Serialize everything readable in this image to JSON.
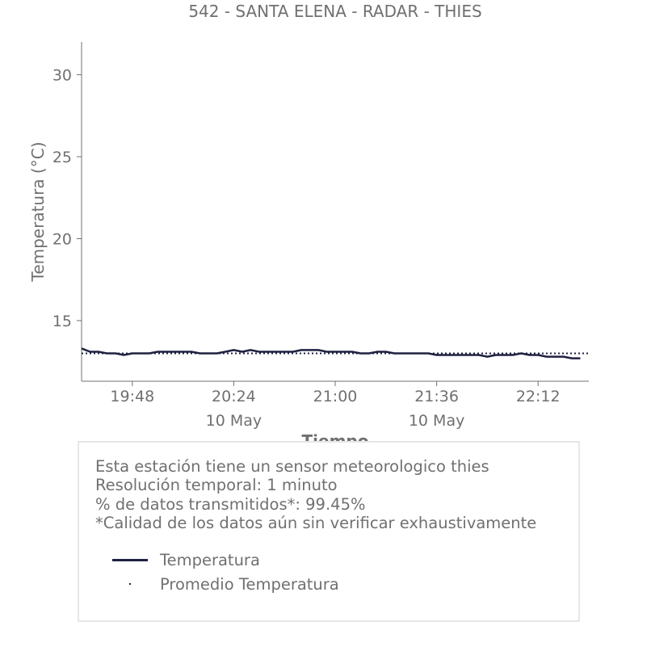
{
  "chart_data": {
    "type": "line",
    "title": "542 - SANTA ELENA - RADAR - THIES",
    "xlabel": "Tiempo",
    "ylabel": "Temperatura (°C)",
    "ylim": [
      11.3,
      32
    ],
    "xlim": [
      "19:30",
      "22:30"
    ],
    "y_ticks": [
      15,
      20,
      25,
      30
    ],
    "x_ticks": [
      {
        "value": "19:48",
        "label": "19:48",
        "sublabel": ""
      },
      {
        "value": "20:24",
        "label": "20:24",
        "sublabel": "10 May"
      },
      {
        "value": "21:00",
        "label": "21:00",
        "sublabel": ""
      },
      {
        "value": "21:36",
        "label": "21:36",
        "sublabel": "10 May"
      },
      {
        "value": "22:12",
        "label": "22:12",
        "sublabel": ""
      }
    ],
    "grid": false,
    "series": [
      {
        "name": "Temperatura",
        "color": "#1f2140",
        "style": "solid",
        "x": [
          "19:30",
          "19:33",
          "19:36",
          "19:39",
          "19:42",
          "19:45",
          "19:48",
          "19:51",
          "19:54",
          "19:57",
          "20:00",
          "20:03",
          "20:06",
          "20:09",
          "20:12",
          "20:15",
          "20:18",
          "20:21",
          "20:24",
          "20:27",
          "20:30",
          "20:33",
          "20:36",
          "20:39",
          "20:42",
          "20:45",
          "20:48",
          "20:51",
          "20:54",
          "20:57",
          "21:00",
          "21:03",
          "21:06",
          "21:09",
          "21:12",
          "21:15",
          "21:18",
          "21:21",
          "21:24",
          "21:27",
          "21:30",
          "21:33",
          "21:36",
          "21:39",
          "21:42",
          "21:45",
          "21:48",
          "21:51",
          "21:54",
          "21:57",
          "22:00",
          "22:03",
          "22:06",
          "22:09",
          "22:12",
          "22:15",
          "22:18",
          "22:21",
          "22:24",
          "22:27"
        ],
        "values": [
          13.3,
          13.1,
          13.1,
          13.0,
          13.0,
          12.9,
          13.0,
          13.0,
          13.0,
          13.1,
          13.1,
          13.1,
          13.1,
          13.1,
          13.0,
          13.0,
          13.0,
          13.1,
          13.2,
          13.1,
          13.2,
          13.1,
          13.1,
          13.1,
          13.1,
          13.1,
          13.2,
          13.2,
          13.2,
          13.1,
          13.1,
          13.1,
          13.1,
          13.0,
          13.0,
          13.1,
          13.1,
          13.0,
          13.0,
          13.0,
          13.0,
          13.0,
          12.9,
          12.9,
          12.9,
          12.9,
          12.9,
          12.9,
          12.8,
          12.9,
          12.9,
          12.9,
          13.0,
          12.9,
          12.9,
          12.8,
          12.8,
          12.8,
          12.7,
          12.7
        ]
      },
      {
        "name": "Promedio Temperatura",
        "color": "#1f2140",
        "style": "dotted",
        "constant": 13.0
      }
    ]
  },
  "info": {
    "lines": [
      "Esta estación tiene un sensor meteorologico thies",
      "Resolución temporal: 1 minuto",
      "% de datos transmitidos*: 99.45%",
      "*Calidad de los datos aún sin verificar exhaustivamente"
    ]
  },
  "legend": {
    "items": [
      {
        "label": "Temperatura",
        "swatch": "line"
      },
      {
        "label": "Promedio Temperatura",
        "swatch": "dot"
      }
    ]
  }
}
